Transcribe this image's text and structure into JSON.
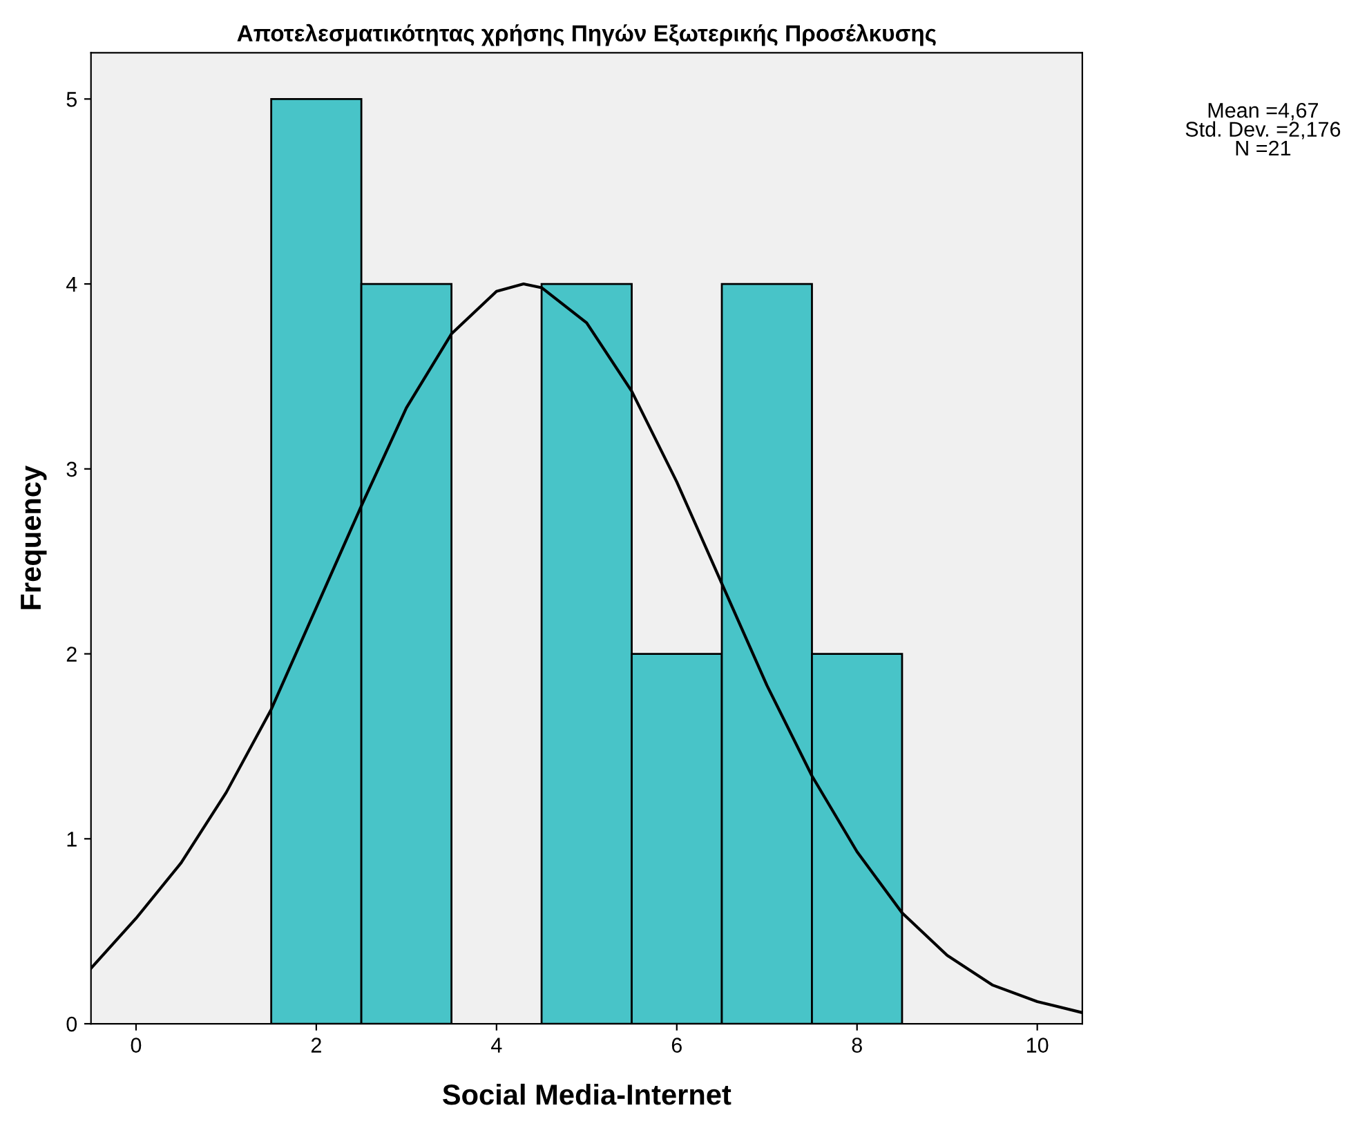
{
  "chart_data": {
    "type": "histogram",
    "title": "Αποτελεσματικότητας χρήσης Πηγών Εξωτερικής Προσέλκυσης",
    "xlabel": "Social Media-Internet",
    "ylabel": "Frequency",
    "bins": [
      1.5,
      2.5,
      3.5,
      4.5,
      5.5,
      6.5,
      7.5,
      8.5
    ],
    "values": [
      5,
      4,
      0,
      4,
      2,
      4,
      2
    ],
    "color": "#48c4c8",
    "series": [
      {
        "type": "line",
        "color": "#000000",
        "x": [
          -0.5,
          0,
          0.5,
          1,
          1.5,
          2,
          2.5,
          3,
          3.5,
          4,
          4.3,
          4.5,
          5,
          5.5,
          6,
          6.5,
          7,
          7.5,
          8,
          8.5,
          9,
          9.5,
          10,
          10.5
        ],
        "values": [
          0.3,
          0.57,
          0.87,
          1.25,
          1.7,
          2.25,
          2.8,
          3.33,
          3.73,
          3.96,
          4.0,
          3.98,
          3.79,
          3.42,
          2.93,
          2.38,
          1.83,
          1.34,
          0.93,
          0.6,
          0.37,
          0.21,
          0.12,
          0.06
        ]
      }
    ],
    "xlim": [
      -0.5,
      10.5
    ],
    "xticks": [
      0,
      2,
      4,
      6,
      8,
      10
    ],
    "ylim": [
      0,
      5.25
    ],
    "yticks": [
      0,
      1,
      2,
      3,
      4,
      5
    ],
    "grid": false,
    "annotations": [
      "Mean =4,67\nStd. Dev. =2,176\nN =21"
    ]
  }
}
